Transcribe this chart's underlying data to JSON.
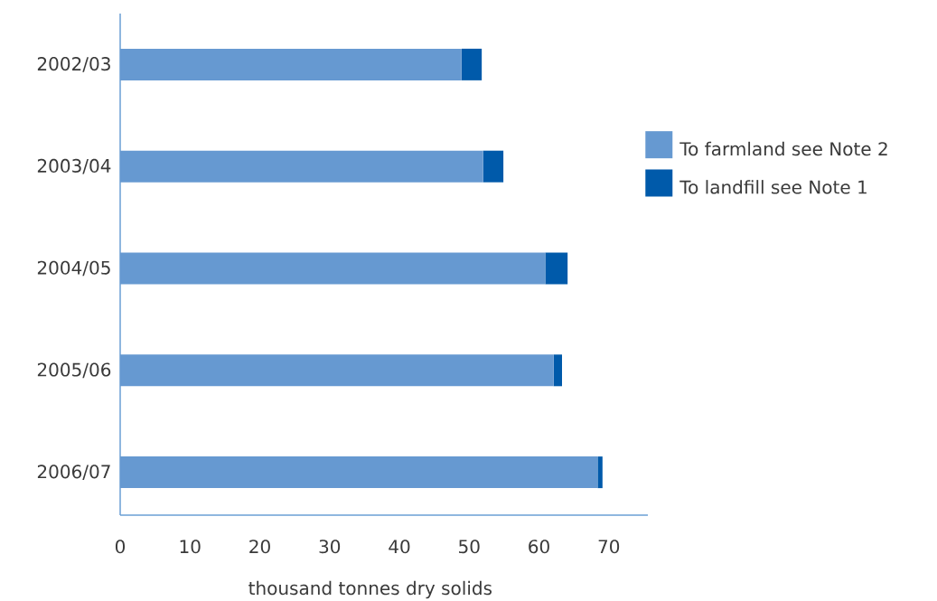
{
  "chart_data": {
    "type": "bar",
    "orientation": "horizontal",
    "stacked": true,
    "xlabel": "thousand tonnes dry solids",
    "categories": [
      "2002/03",
      "2003/04",
      "2004/05",
      "2005/06",
      "2006/07"
    ],
    "series": [
      {
        "name": "To farmland see Note 2",
        "color": "#6699d1",
        "values": [
          48.9,
          52.0,
          60.9,
          62.1,
          68.4
        ]
      },
      {
        "name": "To landfill see Note 1",
        "color": "#005aaa",
        "values": [
          2.9,
          2.9,
          3.2,
          1.2,
          0.7
        ]
      }
    ],
    "xlim": [
      0,
      75.6
    ],
    "xticks": [
      0,
      10,
      20,
      30,
      40,
      50,
      60,
      70
    ],
    "legend": "right"
  }
}
